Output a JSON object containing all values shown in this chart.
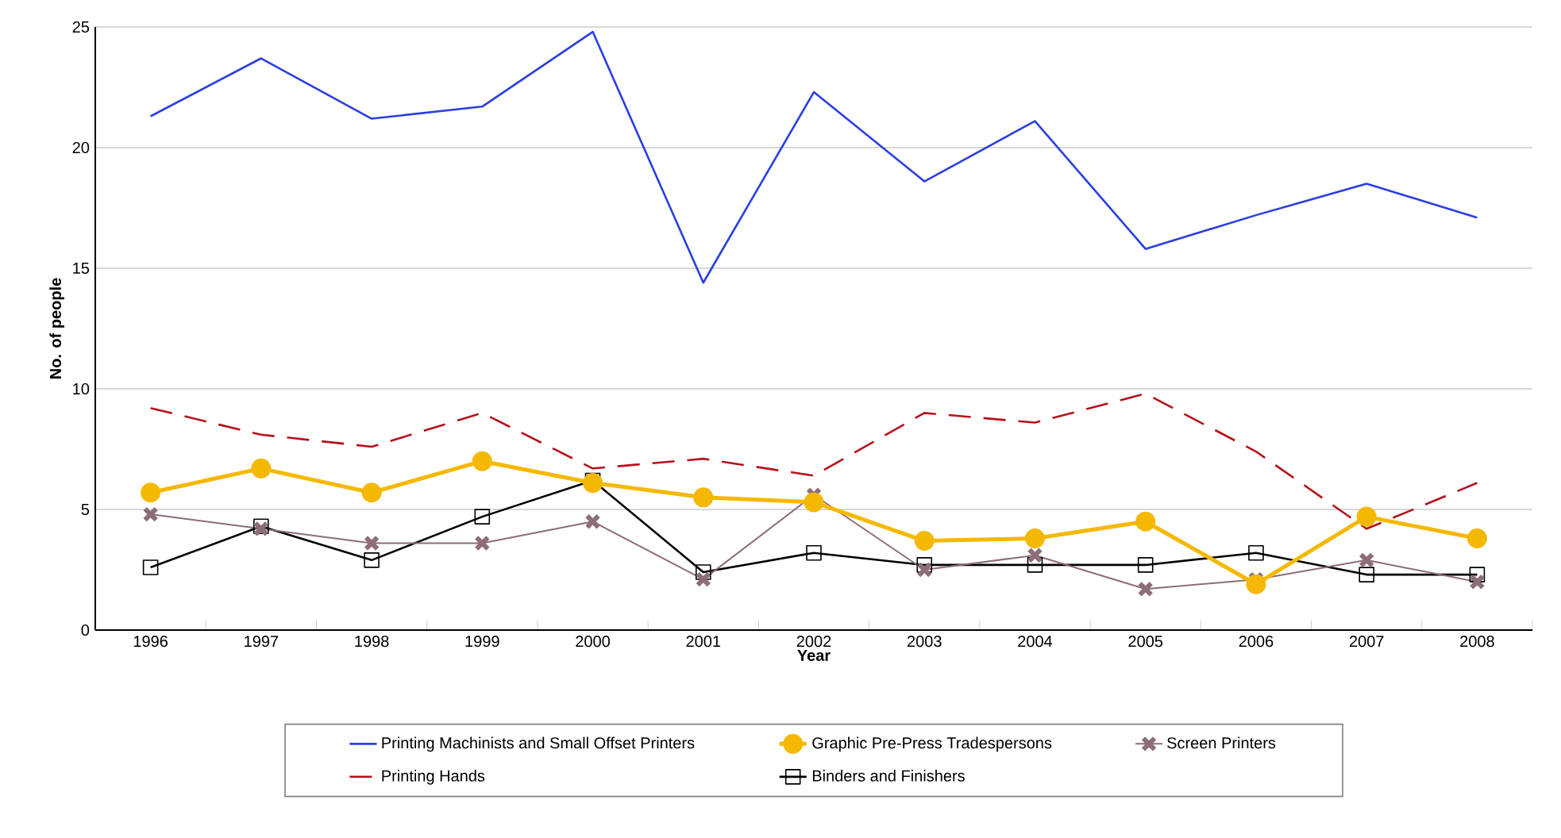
{
  "chart_data": {
    "type": "line",
    "xlabel": "Year",
    "ylabel": "No. of people",
    "categories": [
      "1996",
      "1997",
      "1998",
      "1999",
      "2000",
      "2001",
      "2002",
      "2003",
      "2004",
      "2005",
      "2006",
      "2007",
      "2008"
    ],
    "ylim": [
      0,
      25
    ],
    "yticks": [
      0,
      5,
      10,
      15,
      20,
      25
    ],
    "grid": "y",
    "legend": "bottom",
    "series": [
      {
        "name": "Printing Machinists and Small Offset Printers",
        "color": "#2b3fe0",
        "marker": "none",
        "line_style": "solid",
        "values": [
          21.3,
          23.7,
          21.2,
          21.7,
          24.8,
          14.4,
          22.3,
          18.6,
          21.1,
          15.8,
          17.2,
          18.5,
          17.1
        ]
      },
      {
        "name": "Graphic Pre-Press Tradespersons",
        "color": "#f5b800",
        "marker": "circle",
        "line_style": "solid",
        "values": [
          5.7,
          6.7,
          5.7,
          7.0,
          6.1,
          5.5,
          5.3,
          3.7,
          3.8,
          4.5,
          1.9,
          4.7,
          3.8
        ]
      },
      {
        "name": "Screen Printers",
        "color": "#8c6d78",
        "marker": "cross",
        "line_style": "solid",
        "values": [
          4.8,
          4.2,
          3.6,
          3.6,
          4.5,
          2.1,
          5.6,
          2.5,
          3.1,
          1.7,
          2.1,
          2.9,
          2.0
        ]
      },
      {
        "name": "Printing Hands",
        "color": "#b5121b",
        "marker": "none",
        "line_style": "dashed",
        "values": [
          9.2,
          8.1,
          7.6,
          9.0,
          6.7,
          7.1,
          6.4,
          9.0,
          8.6,
          9.8,
          7.4,
          4.2,
          6.1
        ]
      },
      {
        "name": "Binders and Finishers",
        "color": "#000000",
        "marker": "square",
        "line_style": "solid",
        "values": [
          2.6,
          4.3,
          2.9,
          4.7,
          6.2,
          2.4,
          3.2,
          2.7,
          2.7,
          2.7,
          3.2,
          2.3,
          2.3
        ]
      }
    ]
  }
}
